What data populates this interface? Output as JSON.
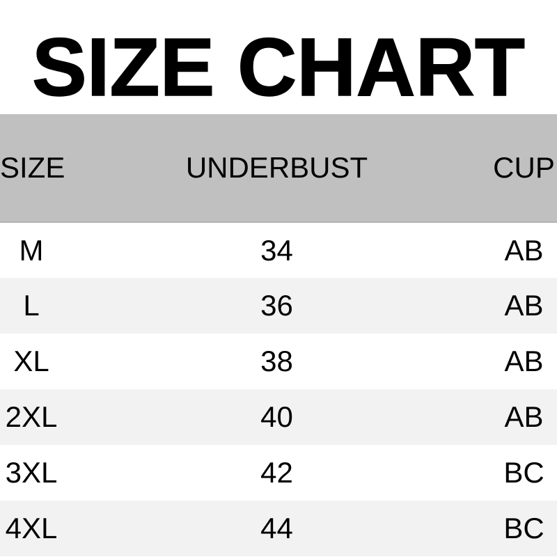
{
  "title": "SIZE CHART",
  "table": {
    "columns": [
      "SIZE",
      "UNDERBUST",
      "CUP"
    ],
    "rows": [
      {
        "size": "M",
        "underbust": "34",
        "cup": "AB"
      },
      {
        "size": "L",
        "underbust": "36",
        "cup": "AB"
      },
      {
        "size": "XL",
        "underbust": "38",
        "cup": "AB"
      },
      {
        "size": "2XL",
        "underbust": "40",
        "cup": "AB"
      },
      {
        "size": "3XL",
        "underbust": "42",
        "cup": "BC"
      },
      {
        "size": "4XL",
        "underbust": "44",
        "cup": "BC"
      }
    ]
  },
  "colors": {
    "header_bg": "#c0c0c0",
    "header_edge": "#b2b2b2",
    "row_bg": "#ffffff",
    "row_alt_bg": "#f2f2f2",
    "text": "#000000",
    "page_bg": "#ffffff"
  },
  "chart_data": {
    "type": "table",
    "title": "SIZE CHART",
    "columns": [
      "SIZE",
      "UNDERBUST",
      "CUP"
    ],
    "rows": [
      [
        "M",
        34,
        "AB"
      ],
      [
        "L",
        36,
        "AB"
      ],
      [
        "XL",
        38,
        "AB"
      ],
      [
        "2XL",
        40,
        "AB"
      ],
      [
        "3XL",
        42,
        "BC"
      ],
      [
        "4XL",
        44,
        "BC"
      ]
    ],
    "notes": "Alternating row shading (white / light gray), gray header band, black heavy title"
  }
}
